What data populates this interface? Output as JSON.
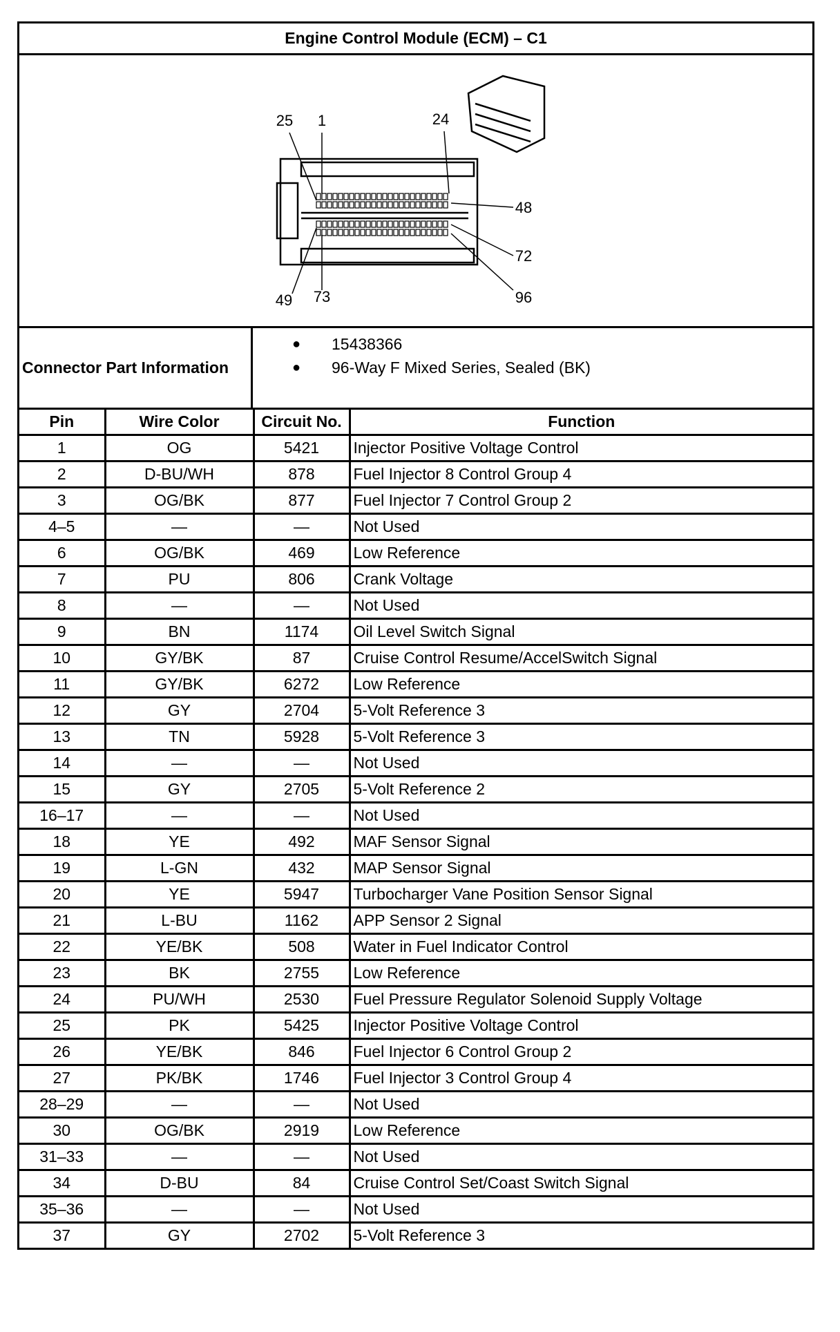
{
  "title": "Engine Control Module (ECM) – C1",
  "diagram": {
    "pin_labels": [
      "25",
      "1",
      "24",
      "48",
      "72",
      "96",
      "49",
      "73"
    ]
  },
  "connector_info": {
    "label": "Connector Part Information",
    "items": [
      "15438366",
      "96-Way F Mixed Series, Sealed (BK)"
    ]
  },
  "table": {
    "headers": [
      "Pin",
      "Wire Color",
      "Circuit No.",
      "Function"
    ],
    "rows": [
      [
        "1",
        "OG",
        "5421",
        "Injector Positive Voltage Control"
      ],
      [
        "2",
        "D-BU/WH",
        "878",
        "Fuel Injector 8 Control Group 4"
      ],
      [
        "3",
        "OG/BK",
        "877",
        "Fuel Injector 7 Control Group 2"
      ],
      [
        "4–5",
        "—",
        "—",
        "Not Used"
      ],
      [
        "6",
        "OG/BK",
        "469",
        "Low Reference"
      ],
      [
        "7",
        "PU",
        "806",
        "Crank Voltage"
      ],
      [
        "8",
        "—",
        "—",
        "Not Used"
      ],
      [
        "9",
        "BN",
        "1174",
        "Oil Level Switch Signal"
      ],
      [
        "10",
        "GY/BK",
        "87",
        "Cruise Control Resume/AccelSwitch Signal"
      ],
      [
        "11",
        "GY/BK",
        "6272",
        "Low Reference"
      ],
      [
        "12",
        "GY",
        "2704",
        "5-Volt Reference 3"
      ],
      [
        "13",
        "TN",
        "5928",
        "5-Volt Reference 3"
      ],
      [
        "14",
        "—",
        "—",
        "Not Used"
      ],
      [
        "15",
        "GY",
        "2705",
        "5-Volt Reference 2"
      ],
      [
        "16–17",
        "—",
        "—",
        "Not Used"
      ],
      [
        "18",
        "YE",
        "492",
        "MAF Sensor Signal"
      ],
      [
        "19",
        "L-GN",
        "432",
        "MAP Sensor Signal"
      ],
      [
        "20",
        "YE",
        "5947",
        "Turbocharger Vane Position Sensor Signal"
      ],
      [
        "21",
        "L-BU",
        "1162",
        "APP Sensor 2 Signal"
      ],
      [
        "22",
        "YE/BK",
        "508",
        "Water in Fuel Indicator Control"
      ],
      [
        "23",
        "BK",
        "2755",
        "Low Reference"
      ],
      [
        "24",
        "PU/WH",
        "2530",
        "Fuel Pressure Regulator Solenoid Supply Voltage"
      ],
      [
        "25",
        "PK",
        "5425",
        "Injector Positive Voltage Control"
      ],
      [
        "26",
        "YE/BK",
        "846",
        "Fuel Injector 6 Control Group 2"
      ],
      [
        "27",
        "PK/BK",
        "1746",
        "Fuel Injector 3 Control Group 4"
      ],
      [
        "28–29",
        "—",
        "—",
        "Not Used"
      ],
      [
        "30",
        "OG/BK",
        "2919",
        "Low Reference"
      ],
      [
        "31–33",
        "—",
        "—",
        "Not Used"
      ],
      [
        "34",
        "D-BU",
        "84",
        "Cruise Control Set/Coast Switch Signal"
      ],
      [
        "35–36",
        "—",
        "—",
        "Not Used"
      ],
      [
        "37",
        "GY",
        "2702",
        "5-Volt Reference 3"
      ]
    ]
  }
}
